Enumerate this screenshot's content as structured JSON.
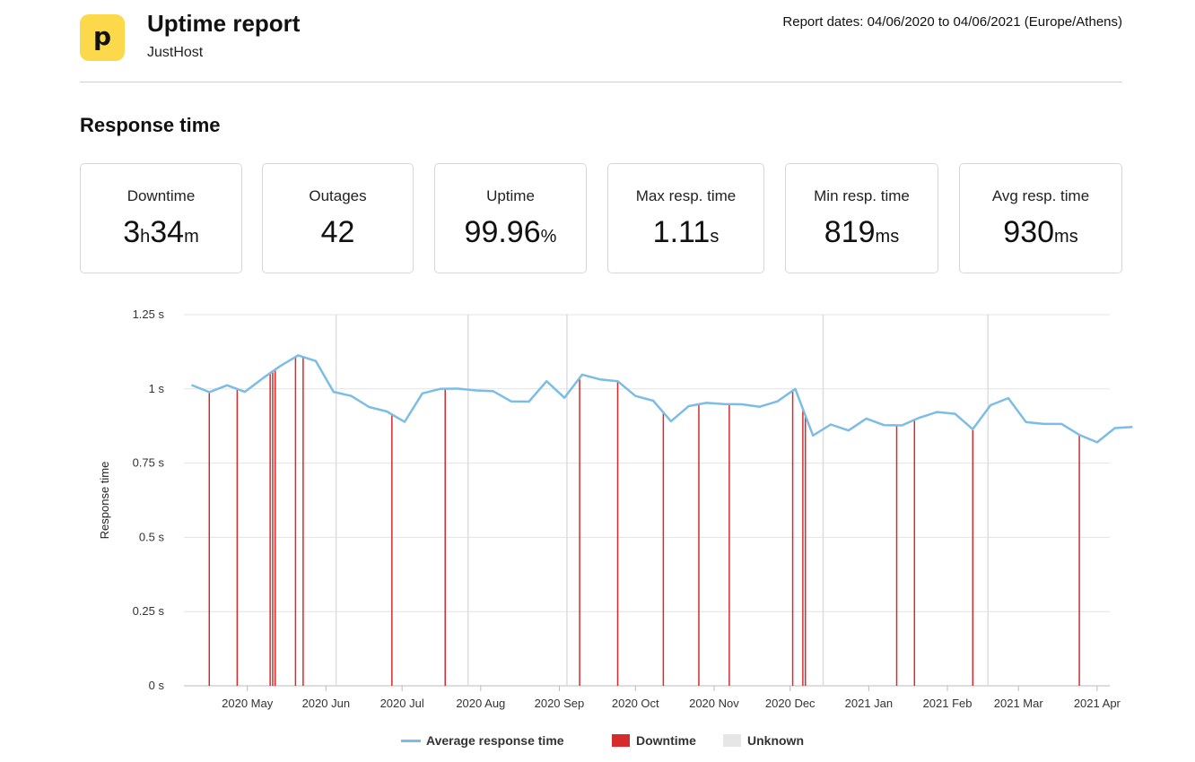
{
  "header": {
    "logo_letter": "p",
    "title": "Uptime report",
    "subtitle": "JustHost",
    "report_dates": "Report dates: 04/06/2020 to 04/06/2021 (Europe/Athens)"
  },
  "section_title": "Response time",
  "stats": [
    {
      "label": "Downtime",
      "parts": [
        {
          "t": "3",
          "big": true
        },
        {
          "t": "h",
          "big": false
        },
        {
          "t": "34",
          "big": true
        },
        {
          "t": "m",
          "big": false
        }
      ]
    },
    {
      "label": "Outages",
      "parts": [
        {
          "t": "42",
          "big": true
        }
      ]
    },
    {
      "label": "Uptime",
      "parts": [
        {
          "t": "99.96",
          "big": true
        },
        {
          "t": "%",
          "big": false
        }
      ]
    },
    {
      "label": "Max resp. time",
      "parts": [
        {
          "t": "1.11",
          "big": true
        },
        {
          "t": "s",
          "big": false
        }
      ]
    },
    {
      "label": "Min resp. time",
      "parts": [
        {
          "t": "819",
          "big": true
        },
        {
          "t": "ms",
          "big": false
        }
      ]
    },
    {
      "label": "Avg resp. time",
      "parts": [
        {
          "t": "930",
          "big": true
        },
        {
          "t": "ms",
          "big": false
        }
      ]
    }
  ],
  "chart_data": {
    "type": "line",
    "ylabel": "Response time",
    "ylim": [
      0,
      1.25
    ],
    "xlim": [
      "2020-04-06",
      "2021-04-06"
    ],
    "y_ticks": [
      {
        "v": 0,
        "label": "0 s"
      },
      {
        "v": 0.25,
        "label": "0.25 s"
      },
      {
        "v": 0.5,
        "label": "0.5 s"
      },
      {
        "v": 0.75,
        "label": "0.75 s"
      },
      {
        "v": 1,
        "label": "1 s"
      },
      {
        "v": 1.25,
        "label": "1.25 s"
      }
    ],
    "x_ticks": [
      {
        "date": "2020-05-01",
        "label": "2020 May"
      },
      {
        "date": "2020-06-01",
        "label": "2020 Jun"
      },
      {
        "date": "2020-07-01",
        "label": "2020 Jul"
      },
      {
        "date": "2020-08-01",
        "label": "2020 Aug"
      },
      {
        "date": "2020-09-01",
        "label": "2020 Sep"
      },
      {
        "date": "2020-10-01",
        "label": "2020 Oct"
      },
      {
        "date": "2020-11-01",
        "label": "2020 Nov"
      },
      {
        "date": "2020-12-01",
        "label": "2020 Dec"
      },
      {
        "date": "2021-01-01",
        "label": "2021 Jan"
      },
      {
        "date": "2021-02-01",
        "label": "2021 Feb"
      },
      {
        "date": "2021-03-01",
        "label": "2021 Mar"
      },
      {
        "date": "2021-04-01",
        "label": "2021 Apr"
      }
    ],
    "grid": true,
    "legend_position": "bottom",
    "colors": {
      "average": "#7cbde6",
      "downtime": "#d62b2b",
      "unknown": "#e6e6e6",
      "grid": "#e3e3e3",
      "axis": "#bbbbbb"
    },
    "series": [
      {
        "name": "Average response time",
        "points": [
          [
            "2020-04-09",
            1.013
          ],
          [
            "2020-04-16",
            0.989
          ],
          [
            "2020-04-23",
            1.012
          ],
          [
            "2020-04-30",
            0.99
          ],
          [
            "2020-05-07",
            1.035
          ],
          [
            "2020-05-14",
            1.077
          ],
          [
            "2020-05-21",
            1.113
          ],
          [
            "2020-05-28",
            1.094
          ],
          [
            "2020-06-04",
            0.99
          ],
          [
            "2020-06-11",
            0.976
          ],
          [
            "2020-06-18",
            0.939
          ],
          [
            "2020-06-25",
            0.924
          ],
          [
            "2020-07-02",
            0.889
          ],
          [
            "2020-07-09",
            0.985
          ],
          [
            "2020-07-16",
            1.0
          ],
          [
            "2020-07-23",
            1.001
          ],
          [
            "2020-07-30",
            0.995
          ],
          [
            "2020-08-06",
            0.992
          ],
          [
            "2020-08-13",
            0.958
          ],
          [
            "2020-08-20",
            0.957
          ],
          [
            "2020-08-27",
            1.026
          ],
          [
            "2020-09-03",
            0.97
          ],
          [
            "2020-09-10",
            1.048
          ],
          [
            "2020-09-17",
            1.032
          ],
          [
            "2020-09-24",
            1.026
          ],
          [
            "2020-10-01",
            0.976
          ],
          [
            "2020-10-08",
            0.96
          ],
          [
            "2020-10-15",
            0.891
          ],
          [
            "2020-10-22",
            0.942
          ],
          [
            "2020-10-29",
            0.953
          ],
          [
            "2020-11-05",
            0.949
          ],
          [
            "2020-11-12",
            0.948
          ],
          [
            "2020-11-19",
            0.94
          ],
          [
            "2020-11-26",
            0.958
          ],
          [
            "2020-12-03",
            1.0
          ],
          [
            "2020-12-10",
            0.843
          ],
          [
            "2020-12-17",
            0.88
          ],
          [
            "2020-12-24",
            0.86
          ],
          [
            "2020-12-31",
            0.9
          ],
          [
            "2021-01-07",
            0.878
          ],
          [
            "2021-01-14",
            0.877
          ],
          [
            "2021-01-21",
            0.903
          ],
          [
            "2021-01-28",
            0.922
          ],
          [
            "2021-02-04",
            0.916
          ],
          [
            "2021-02-11",
            0.864
          ],
          [
            "2021-02-18",
            0.945
          ],
          [
            "2021-02-25",
            0.969
          ],
          [
            "2021-03-04",
            0.888
          ],
          [
            "2021-03-11",
            0.882
          ],
          [
            "2021-03-18",
            0.882
          ],
          [
            "2021-03-25",
            0.845
          ],
          [
            "2021-04-01",
            0.82
          ],
          [
            "2021-04-08",
            0.868
          ],
          [
            "2021-04-15",
            0.872
          ]
        ]
      },
      {
        "name": "Downtime",
        "events": [
          "2020-04-16",
          "2020-04-27",
          "2020-05-10",
          "2020-05-11",
          "2020-05-12",
          "2020-05-20",
          "2020-05-23",
          "2020-06-27",
          "2020-07-18",
          "2020-09-09",
          "2020-09-24",
          "2020-10-12",
          "2020-10-26",
          "2020-11-07",
          "2020-12-02",
          "2020-12-06",
          "2020-12-07",
          "2021-01-12",
          "2021-01-19",
          "2021-02-11",
          "2021-03-25"
        ]
      },
      {
        "name": "Unknown",
        "events": [
          "2020-06-05",
          "2020-07-27",
          "2020-09-04",
          "2020-12-14",
          "2021-02-17"
        ]
      }
    ]
  }
}
